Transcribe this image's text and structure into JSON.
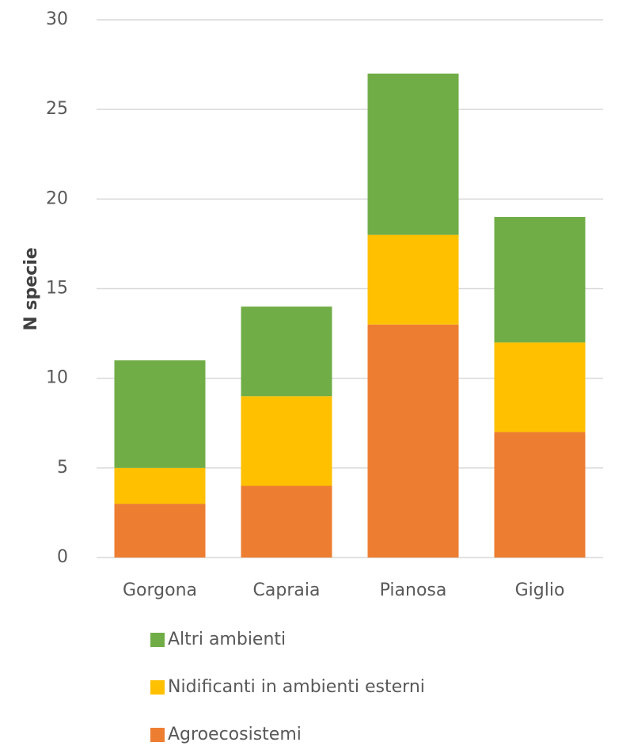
{
  "chart_data": {
    "type": "stacked-bar",
    "y_label": "N specie",
    "categories": [
      "Gorgona",
      "Capraia",
      "Pianosa",
      "Giglio"
    ],
    "series": [
      {
        "name": "Agroecosistemi",
        "color": "#ed7d31",
        "values": [
          3,
          4,
          13,
          7
        ]
      },
      {
        "name": "Nidificanti in ambienti esterni",
        "color": "#ffc000",
        "values": [
          2,
          5,
          5,
          5
        ]
      },
      {
        "name": "Altri ambienti",
        "color": "#70ad47",
        "values": [
          6,
          5,
          9,
          7
        ]
      }
    ],
    "ylim": [
      0,
      30
    ],
    "yticks": [
      0,
      5,
      10,
      15,
      20,
      25,
      30
    ],
    "grid": true
  }
}
